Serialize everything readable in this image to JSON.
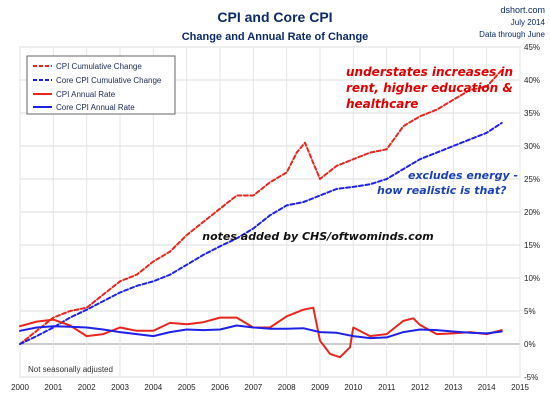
{
  "source": {
    "site": "dshort.com",
    "date": "July 2014",
    "through": "Data through June"
  },
  "chart_data": {
    "type": "line",
    "title": "CPI and Core CPI",
    "subtitle": "Change and Annual Rate of Change",
    "xlabel": "",
    "ylabel": "",
    "xlim": [
      2000,
      2015
    ],
    "ylim": [
      -5,
      45
    ],
    "x_ticks": [
      "2000",
      "2001",
      "2002",
      "2003",
      "2004",
      "2005",
      "2006",
      "2007",
      "2008",
      "2009",
      "2010",
      "2011",
      "2012",
      "2013",
      "2014",
      "2015"
    ],
    "y_ticks": [
      "-5%",
      "0%",
      "5%",
      "10%",
      "15%",
      "20%",
      "25%",
      "30%",
      "35%",
      "40%",
      "45%"
    ],
    "y_tick_values": [
      -5,
      0,
      5,
      10,
      15,
      20,
      25,
      30,
      35,
      40,
      45
    ],
    "grid": true,
    "legend_position": "top-left",
    "series": [
      {
        "name": "CPI Cumulative Change",
        "color": "#e8261f",
        "style": "dashed",
        "x": [
          2000.0,
          2000.5,
          2001.0,
          2001.5,
          2002.0,
          2002.5,
          2003.0,
          2003.5,
          2004.0,
          2004.5,
          2005.0,
          2005.5,
          2006.0,
          2006.5,
          2007.0,
          2007.5,
          2008.0,
          2008.3,
          2008.55,
          2008.75,
          2009.0,
          2009.5,
          2010.0,
          2010.5,
          2011.0,
          2011.5,
          2012.0,
          2012.5,
          2013.0,
          2013.5,
          2014.0,
          2014.45
        ],
        "y": [
          0.0,
          2.0,
          4.0,
          5.0,
          5.5,
          7.5,
          9.5,
          10.5,
          12.5,
          14.0,
          16.5,
          18.5,
          20.5,
          22.5,
          22.5,
          24.5,
          26.0,
          29.0,
          30.5,
          28.0,
          25.0,
          27.0,
          28.0,
          29.0,
          29.5,
          33.0,
          34.5,
          35.5,
          37.0,
          38.5,
          39.0,
          41.5
        ]
      },
      {
        "name": "Core CPI Cumulative Change",
        "color": "#1f22e6",
        "style": "dashed",
        "x": [
          2000.0,
          2000.5,
          2001.0,
          2001.5,
          2002.0,
          2002.5,
          2003.0,
          2003.5,
          2004.0,
          2004.5,
          2005.0,
          2005.5,
          2006.0,
          2006.5,
          2007.0,
          2007.5,
          2008.0,
          2008.5,
          2009.0,
          2009.5,
          2010.0,
          2010.5,
          2011.0,
          2011.5,
          2012.0,
          2012.5,
          2013.0,
          2013.5,
          2014.0,
          2014.45
        ],
        "y": [
          0.0,
          1.2,
          2.5,
          4.0,
          5.2,
          6.5,
          7.8,
          8.8,
          9.5,
          10.5,
          12.0,
          13.5,
          14.8,
          16.0,
          17.5,
          19.5,
          21.0,
          21.5,
          22.5,
          23.5,
          23.8,
          24.2,
          25.0,
          26.5,
          28.0,
          29.0,
          30.0,
          31.0,
          32.0,
          33.5
        ]
      },
      {
        "name": "CPI Annual Rate",
        "color": "#e8261f",
        "style": "solid",
        "x": [
          2000.0,
          2000.5,
          2001.0,
          2001.5,
          2002.0,
          2002.5,
          2003.0,
          2003.5,
          2004.0,
          2004.5,
          2005.0,
          2005.5,
          2006.0,
          2006.5,
          2007.0,
          2007.5,
          2008.0,
          2008.5,
          2008.8,
          2009.0,
          2009.3,
          2009.6,
          2009.9,
          2010.0,
          2010.5,
          2011.0,
          2011.5,
          2011.8,
          2012.0,
          2012.5,
          2013.0,
          2013.5,
          2014.0,
          2014.45
        ],
        "y": [
          2.7,
          3.4,
          3.7,
          2.8,
          1.2,
          1.5,
          2.5,
          2.0,
          2.0,
          3.2,
          3.0,
          3.3,
          4.0,
          4.0,
          2.5,
          2.5,
          4.2,
          5.2,
          5.5,
          0.5,
          -1.5,
          -2.0,
          -0.5,
          2.5,
          1.2,
          1.5,
          3.5,
          3.9,
          2.9,
          1.5,
          1.6,
          1.8,
          1.5,
          2.1
        ]
      },
      {
        "name": "Core CPI Annual Rate",
        "color": "#1f22e6",
        "style": "solid",
        "x": [
          2000.0,
          2000.5,
          2001.0,
          2001.5,
          2002.0,
          2002.5,
          2003.0,
          2003.5,
          2004.0,
          2004.5,
          2005.0,
          2005.5,
          2006.0,
          2006.5,
          2007.0,
          2007.5,
          2008.0,
          2008.5,
          2009.0,
          2009.5,
          2010.0,
          2010.5,
          2011.0,
          2011.5,
          2012.0,
          2012.5,
          2013.0,
          2013.5,
          2014.0,
          2014.45
        ],
        "y": [
          2.0,
          2.5,
          2.7,
          2.6,
          2.5,
          2.2,
          1.8,
          1.5,
          1.2,
          1.8,
          2.2,
          2.1,
          2.2,
          2.8,
          2.5,
          2.3,
          2.3,
          2.4,
          1.8,
          1.7,
          1.2,
          0.9,
          1.0,
          1.8,
          2.2,
          2.1,
          1.9,
          1.7,
          1.6,
          1.9
        ]
      }
    ],
    "annotations": {
      "red_note_lines": [
        "understates increases in",
        "rent, higher education &",
        "healthcare"
      ],
      "blue_note_lines": [
        "excludes energy -",
        "how realistic is that?"
      ],
      "credit": "notes added by CHS/oftwominds.com",
      "footnote": "Not seasonally adjusted"
    }
  }
}
